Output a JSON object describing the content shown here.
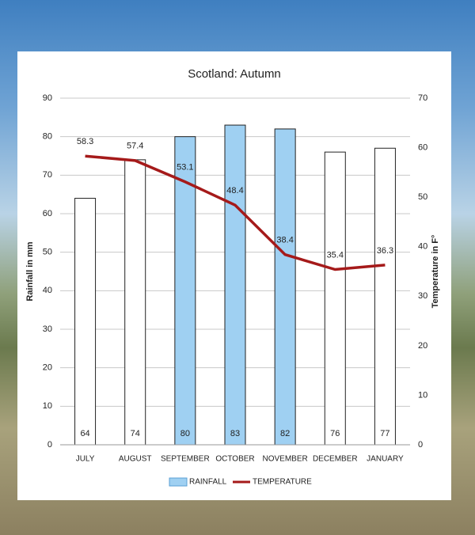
{
  "chart_data": {
    "type": "bar_line",
    "title": "Scotland: Autumn",
    "categories": [
      "JULY",
      "AUGUST",
      "SEPTEMBER",
      "OCTOBER",
      "NOVEMBER",
      "DECEMBER",
      "JANUARY"
    ],
    "series": [
      {
        "name": "RAINFALL",
        "color": "#9fd0f2",
        "bar_colors": [
          "#ffffff",
          "#ffffff",
          "#9fd0f2",
          "#9fd0f2",
          "#9fd0f2",
          "#ffffff",
          "#ffffff"
        ],
        "values": [
          64,
          74,
          80,
          83,
          82,
          76,
          77
        ]
      },
      {
        "name": "TEMPERATURE",
        "color": "#a51a1a",
        "axis": "y2",
        "values": [
          58.3,
          57.4,
          53.1,
          48.4,
          38.4,
          35.4,
          36.3
        ]
      }
    ],
    "ylabel": "Rainfall in mm",
    "y2label": "Temperature in F°",
    "ylim": [
      0,
      90
    ],
    "yticks": [
      0,
      10,
      20,
      30,
      40,
      50,
      60,
      70,
      80,
      90
    ],
    "y2lim": [
      0,
      70
    ],
    "y2ticks": [
      0,
      10,
      20,
      30,
      40,
      50,
      60,
      70
    ],
    "grid": true,
    "legend": "bottom"
  }
}
